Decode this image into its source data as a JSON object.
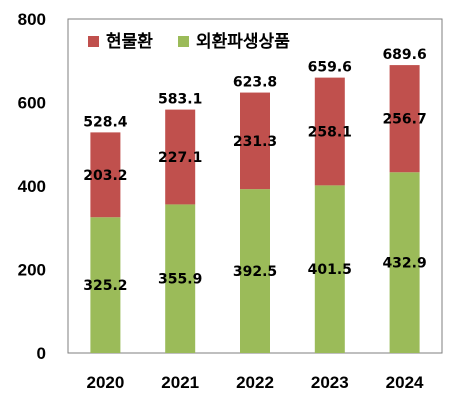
{
  "chart_data": {
    "type": "bar",
    "stacked": true,
    "categories": [
      "2020",
      "2021",
      "2022",
      "2023",
      "2024"
    ],
    "series": [
      {
        "name": "외환파생상품",
        "color": "#9bbb59",
        "values": [
          325.2,
          355.9,
          392.5,
          401.5,
          432.9
        ]
      },
      {
        "name": "현물환",
        "color": "#c0504d",
        "values": [
          203.2,
          227.1,
          231.3,
          258.1,
          256.7
        ]
      }
    ],
    "totals": [
      528.4,
      583.1,
      623.8,
      659.6,
      689.6
    ],
    "ylim": [
      0,
      800
    ],
    "yticks": [
      0,
      200,
      400,
      600,
      800
    ],
    "legend_position": "top-left",
    "legend_order": [
      "현물환",
      "외환파생상품"
    ],
    "grid": false
  }
}
